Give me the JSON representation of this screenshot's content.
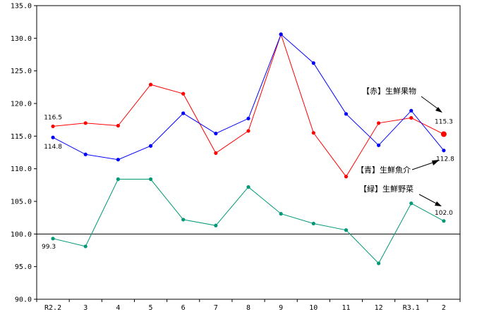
{
  "chart_data": {
    "type": "line",
    "categories": [
      "R2.2",
      "3",
      "4",
      "5",
      "6",
      "7",
      "8",
      "9",
      "10",
      "11",
      "12",
      "R3.1",
      "2"
    ],
    "ylim": [
      90,
      135
    ],
    "yticks": [
      "90.0",
      "95.0",
      "100.0",
      "105.0",
      "110.0",
      "115.0",
      "120.0",
      "125.0",
      "130.0",
      "135.0"
    ],
    "reference_line": 100,
    "grid": false,
    "series": [
      {
        "name": "【赤】生鮮果物",
        "color": "#ff0000",
        "values": [
          116.5,
          117.0,
          116.6,
          122.9,
          121.5,
          112.4,
          115.8,
          130.6,
          115.5,
          108.8,
          117.0,
          117.8,
          115.3
        ],
        "first_label": "116.5",
        "last_label": "115.3"
      },
      {
        "name": "【青】生鮮魚介",
        "color": "#0000ff",
        "values": [
          114.8,
          112.2,
          111.4,
          113.5,
          118.5,
          115.4,
          117.7,
          130.6,
          126.2,
          118.4,
          113.6,
          118.9,
          112.8
        ],
        "first_label": "114.8",
        "last_label": "112.8"
      },
      {
        "name": "【緑】生鮮野菜",
        "color": "#009977",
        "values": [
          99.3,
          98.1,
          108.4,
          108.4,
          102.2,
          101.3,
          107.2,
          103.1,
          101.6,
          100.6,
          95.5,
          104.7,
          102.0
        ],
        "first_label": "99.3",
        "last_label": "102.0"
      }
    ]
  }
}
